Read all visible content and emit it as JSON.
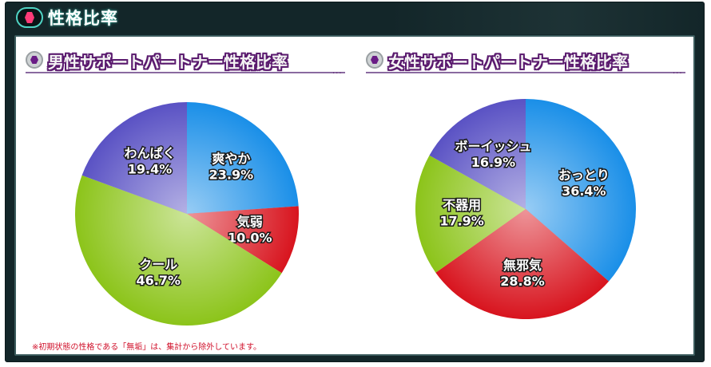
{
  "header": {
    "title": "性格比率"
  },
  "note": "※初期状態の性格である「無垢」は、集計から除外しています。",
  "chart_data": [
    {
      "type": "pie",
      "title": "男性サポートパートナー性格比率",
      "labels": [
        "爽やか",
        "気弱",
        "クール",
        "わんぱく"
      ],
      "values": [
        23.9,
        10.0,
        46.7,
        19.4
      ],
      "value_labels": [
        "23.9%",
        "10.0%",
        "46.7%",
        "19.4%"
      ],
      "colors": [
        "#1a8fe8",
        "#d8141e",
        "#8cc41a",
        "#5a52c4"
      ],
      "start_angle_deg": 0,
      "direction": "clockwise"
    },
    {
      "type": "pie",
      "title": "女性サポートパートナー性格比率",
      "labels": [
        "おっとり",
        "無邪気",
        "不器用",
        "ボーイッシュ"
      ],
      "values": [
        36.4,
        28.8,
        17.9,
        16.9
      ],
      "value_labels": [
        "36.4%",
        "28.8%",
        "17.9%",
        "16.9%"
      ],
      "colors": [
        "#1a8fe8",
        "#d8141e",
        "#8cc41a",
        "#5a52c4"
      ],
      "start_angle_deg": 0,
      "direction": "clockwise"
    }
  ]
}
